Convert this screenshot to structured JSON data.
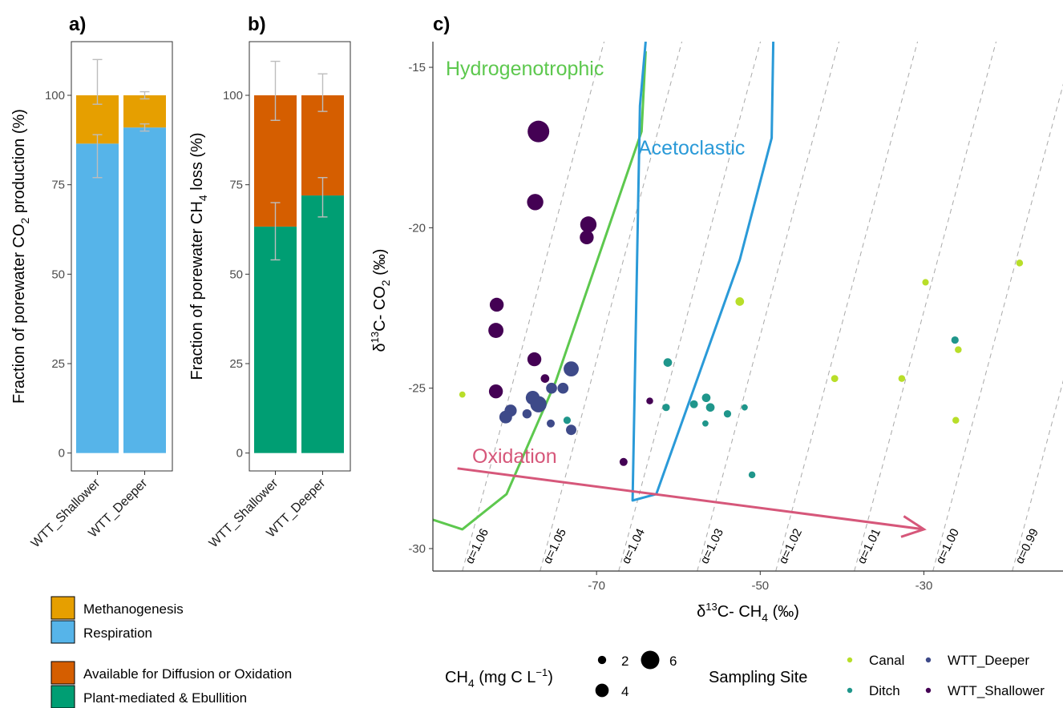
{
  "chart_data": [
    {
      "type": "bar",
      "panel_label": "a)",
      "ylabel_main": "Fraction of porewater CO",
      "ylabel_sub": "2",
      "ylabel_tail": " production (%)",
      "categories": [
        "WTT_Shallower",
        "WTT_Deeper"
      ],
      "stacked": true,
      "ylim": [
        -5,
        115
      ],
      "yticks": [
        0,
        25,
        50,
        75,
        100
      ],
      "series": [
        {
          "name": "Respiration",
          "color": "#56B4E9",
          "values": [
            86.5,
            91.0
          ],
          "error_low": [
            77,
            90
          ],
          "error_high": [
            89,
            92
          ]
        },
        {
          "name": "Methanogenesis",
          "color": "#E69F00",
          "values": [
            13.5,
            9.0
          ],
          "error_low": [
            97.5,
            99
          ],
          "error_high": [
            110,
            101
          ]
        }
      ]
    },
    {
      "type": "bar",
      "panel_label": "b)",
      "ylabel_main": "Fraction of porewater CH",
      "ylabel_sub": "4",
      "ylabel_tail": " loss (%)",
      "categories": [
        "WTT_Shallower",
        "WTT_Deeper"
      ],
      "stacked": true,
      "ylim": [
        -5,
        115
      ],
      "yticks": [
        0,
        25,
        50,
        75,
        100
      ],
      "series": [
        {
          "name": "Plant-mediated & Ebullition",
          "color": "#009E73",
          "values": [
            63.3,
            72.0
          ],
          "error_low": [
            54,
            66
          ],
          "error_high": [
            70,
            77
          ]
        },
        {
          "name": "Available for Diffusion or Oxidation",
          "color": "#D55E00",
          "values": [
            36.7,
            28.0
          ],
          "error_low": [
            93,
            95.5
          ],
          "error_high": [
            109.5,
            106
          ]
        }
      ]
    },
    {
      "type": "scatter",
      "panel_label": "c)",
      "xlabel_pre": "δ",
      "xlabel_sup": "13",
      "xlabel_mid": "C- CH",
      "xlabel_sub": "4",
      "xlabel_tail": " (‰)",
      "ylabel_pre": "δ",
      "ylabel_sup": "13",
      "ylabel_mid": "C- CO",
      "ylabel_sub": "2",
      "ylabel_tail": " (‰)",
      "xlim": [
        -90,
        -13
      ],
      "ylim": [
        -30.7,
        -14.2
      ],
      "xticks": [
        -70,
        -50,
        -30
      ],
      "yticks": [
        -30,
        -25,
        -20,
        -15
      ],
      "alpha_lines": [
        {
          "label": "α=1.06",
          "x0": -86.4
        },
        {
          "label": "α=1.05",
          "x0": -76.9
        },
        {
          "label": "α=1.04",
          "x0": -67.3
        },
        {
          "label": "α=1.03",
          "x0": -57.7
        },
        {
          "label": "α=1.02",
          "x0": -48.1
        },
        {
          "label": "α=1.01",
          "x0": -38.5
        },
        {
          "label": "α=1.00",
          "x0": -28.9
        },
        {
          "label": "α=0.99",
          "x0": -19.2
        }
      ],
      "alpha_slope_x_per_y": 1.05,
      "regions": [
        {
          "name": "Hydrogenotrophic",
          "color": "#5DC84E",
          "points": [
            [
              -90,
              -29.1
            ],
            [
              -86.4,
              -29.4
            ],
            [
              -81,
              -28.3
            ],
            [
              -75,
              -24.8
            ],
            [
              -64.5,
              -17.0
            ],
            [
              -64.0,
              -14.5
            ]
          ]
        },
        {
          "name": "Acetoclastic",
          "color": "#2A9AD8",
          "points": [
            [
              -64.0,
              -14.2
            ],
            [
              -64.7,
              -16.2
            ],
            [
              -65.6,
              -28.5
            ],
            [
              -62.7,
              -28.3
            ],
            [
              -52.5,
              -21.0
            ],
            [
              -48.6,
              -17.2
            ],
            [
              -48.4,
              -14.2
            ]
          ]
        }
      ],
      "oxidation_arrow": {
        "label": "Oxidation",
        "color": "#D6577A",
        "from": [
          -87,
          -27.5
        ],
        "to": [
          -30,
          -29.4
        ]
      },
      "size_legend": {
        "title_main": "CH",
        "title_sub": "4",
        "title_tail": " (mg C  L",
        "title_sup": "−1",
        "title_end": ")",
        "values": [
          2,
          4,
          6
        ]
      },
      "color_legend": {
        "title": "Sampling Site",
        "entries": [
          {
            "name": "Canal",
            "color": "#B8DE29"
          },
          {
            "name": "Ditch",
            "color": "#1F968B"
          },
          {
            "name": "WTT_Deeper",
            "color": "#3E4A89"
          },
          {
            "name": "WTT_Shallower",
            "color": "#440154"
          }
        ]
      },
      "series": [
        {
          "name": "WTT_Shallower",
          "color": "#440154",
          "points": [
            {
              "x": -77.1,
              "y": -17.0,
              "ch4": 6.0
            },
            {
              "x": -77.5,
              "y": -19.2,
              "ch4": 4.2
            },
            {
              "x": -71.0,
              "y": -19.9,
              "ch4": 4.2
            },
            {
              "x": -71.2,
              "y": -20.3,
              "ch4": 3.4
            },
            {
              "x": -82.2,
              "y": -22.4,
              "ch4": 3.4
            },
            {
              "x": -82.3,
              "y": -23.2,
              "ch4": 3.8
            },
            {
              "x": -77.6,
              "y": -24.1,
              "ch4": 3.4
            },
            {
              "x": -76.3,
              "y": -24.7,
              "ch4": 1.6
            },
            {
              "x": -82.3,
              "y": -25.1,
              "ch4": 3.4
            },
            {
              "x": -63.5,
              "y": -25.4,
              "ch4": 1.0
            },
            {
              "x": -66.7,
              "y": -27.3,
              "ch4": 1.4
            }
          ]
        },
        {
          "name": "WTT_Deeper",
          "color": "#3E4A89",
          "points": [
            {
              "x": -73.1,
              "y": -24.4,
              "ch4": 3.8
            },
            {
              "x": -75.5,
              "y": -25.0,
              "ch4": 2.4
            },
            {
              "x": -74.1,
              "y": -25.0,
              "ch4": 2.4
            },
            {
              "x": -77.8,
              "y": -25.3,
              "ch4": 3.4
            },
            {
              "x": -77.1,
              "y": -25.5,
              "ch4": 4.2
            },
            {
              "x": -80.5,
              "y": -25.7,
              "ch4": 2.8
            },
            {
              "x": -81.1,
              "y": -25.9,
              "ch4": 3.0
            },
            {
              "x": -78.5,
              "y": -25.8,
              "ch4": 1.8
            },
            {
              "x": -75.6,
              "y": -26.1,
              "ch4": 1.4
            },
            {
              "x": -73.1,
              "y": -26.3,
              "ch4": 2.2
            }
          ]
        },
        {
          "name": "Ditch",
          "color": "#1F968B",
          "points": [
            {
              "x": -61.3,
              "y": -24.2,
              "ch4": 1.6
            },
            {
              "x": -58.1,
              "y": -25.5,
              "ch4": 1.4
            },
            {
              "x": -56.6,
              "y": -25.3,
              "ch4": 1.6
            },
            {
              "x": -56.1,
              "y": -25.6,
              "ch4": 1.6
            },
            {
              "x": -54.0,
              "y": -25.8,
              "ch4": 1.2
            },
            {
              "x": -61.5,
              "y": -25.6,
              "ch4": 1.2
            },
            {
              "x": -51.9,
              "y": -25.6,
              "ch4": 0.8
            },
            {
              "x": -56.7,
              "y": -26.1,
              "ch4": 0.8
            },
            {
              "x": -73.6,
              "y": -26.0,
              "ch4": 1.2
            },
            {
              "x": -51.0,
              "y": -27.7,
              "ch4": 1.0
            },
            {
              "x": -26.2,
              "y": -23.5,
              "ch4": 1.2
            }
          ]
        },
        {
          "name": "Canal",
          "color": "#B8DE29",
          "points": [
            {
              "x": -18.3,
              "y": -21.1,
              "ch4": 1.0
            },
            {
              "x": -29.8,
              "y": -21.7,
              "ch4": 0.9
            },
            {
              "x": -52.5,
              "y": -22.3,
              "ch4": 1.6
            },
            {
              "x": -25.8,
              "y": -23.8,
              "ch4": 1.0
            },
            {
              "x": -40.9,
              "y": -24.7,
              "ch4": 1.1
            },
            {
              "x": -32.7,
              "y": -24.7,
              "ch4": 1.0
            },
            {
              "x": -26.1,
              "y": -26.0,
              "ch4": 1.0
            },
            {
              "x": -86.4,
              "y": -25.2,
              "ch4": 0.8
            }
          ]
        }
      ]
    }
  ],
  "legend_ab": [
    {
      "name": "Methanogenesis",
      "color": "#E69F00"
    },
    {
      "name": "Respiration",
      "color": "#56B4E9"
    },
    {
      "name": "Available for Diffusion or Oxidation",
      "color": "#D55E00"
    },
    {
      "name": "Plant-mediated & Ebullition",
      "color": "#009E73"
    }
  ]
}
